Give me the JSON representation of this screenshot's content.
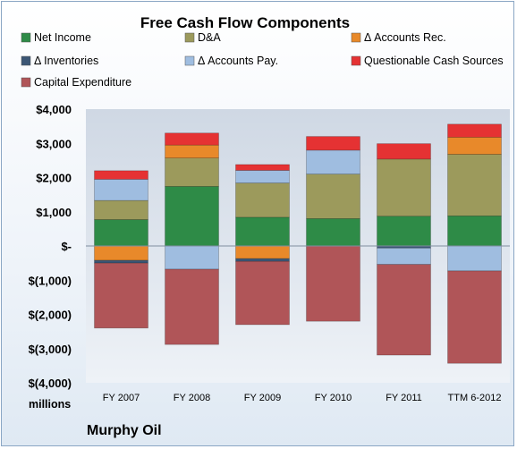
{
  "chart_data": {
    "type": "bar",
    "stacked": true,
    "title": "Free Cash Flow Components",
    "units_label": "millions",
    "company": "Murphy Oil",
    "categories": [
      "FY 2007",
      "FY 2008",
      "FY 2009",
      "FY 2010",
      "FY 2011",
      "TTM 6-2012"
    ],
    "ylim": [
      -4000,
      4000
    ],
    "yticks": [
      4000,
      3000,
      2000,
      1000,
      0,
      -1000,
      -2000,
      -3000,
      -4000
    ],
    "ytick_labels": [
      "$4,000",
      "$3,000",
      "$2,000",
      "$1,000",
      "$-",
      "$(1,000)",
      "$(2,000)",
      "$(3,000)",
      "$(4,000)"
    ],
    "legend_position": "top",
    "grid": false,
    "series": [
      {
        "name": "Net Income",
        "color": "#2e8b47",
        "values": [
          770,
          1740,
          840,
          800,
          870,
          880
        ]
      },
      {
        "name": "D&A",
        "color": "#9c9a5c",
        "values": [
          560,
          830,
          1000,
          1300,
          1670,
          1800
        ]
      },
      {
        "name": "Δ Accounts Rec.",
        "color": "#e8892a",
        "values": [
          -420,
          380,
          -370,
          0,
          0,
          500
        ]
      },
      {
        "name": "Δ Inventories",
        "color": "#3c5675",
        "values": [
          -80,
          0,
          -80,
          0,
          -60,
          0
        ]
      },
      {
        "name": "Δ Accounts Pay.",
        "color": "#9fbde0",
        "values": [
          620,
          -680,
          370,
          700,
          -480,
          -730
        ]
      },
      {
        "name": "Questionable Cash Sources",
        "color": "#e53233",
        "values": [
          250,
          350,
          170,
          400,
          450,
          380
        ]
      },
      {
        "name": "Capital Expenditure",
        "color": "#b05558",
        "values": [
          -1900,
          -2200,
          -1850,
          -2200,
          -2650,
          -2700
        ]
      }
    ]
  }
}
